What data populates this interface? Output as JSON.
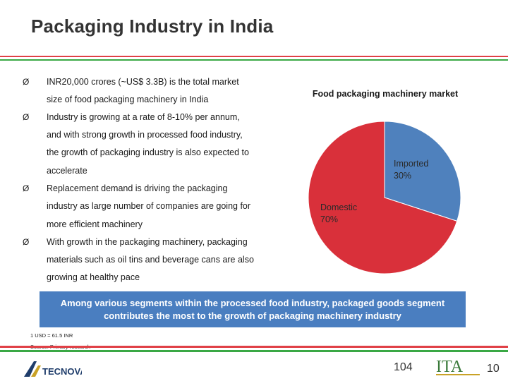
{
  "slide": {
    "title": "Packaging Industry in India",
    "bullet_symbol": "Ø",
    "bullets": [
      {
        "lines": [
          "INR20,000 crores (~US$ 3.3B) is the total market",
          "size of food packaging machinery in India"
        ]
      },
      {
        "lines": [
          "Industry is growing at a rate of 8-10% per annum,",
          "and with strong growth in processed food industry,",
          "the growth of packaging industry is also expected to",
          "accelerate"
        ]
      },
      {
        "lines": [
          "Replacement demand is driving the packaging",
          "industry as large number of companies are going for",
          "more efficient machinery"
        ]
      },
      {
        "lines": [
          "With growth in the packaging machinery, packaging",
          "materials such as oil tins and beverage cans are also",
          "growing at healthy pace"
        ]
      }
    ],
    "banner": "Among various segments within the processed food industry, packaged goods segment contributes the most to the growth of packaging machinery industry",
    "footnote_1": "1 USD = 61.5 INR",
    "footnote_2": "Source: Primary research",
    "page_number_center": "104",
    "page_number_right": "10",
    "logo_left_text": "TECNOVA",
    "logo_right_text": "ITA",
    "colors": {
      "red": "#d9303a",
      "blue": "#4f81bd",
      "banner": "#4a7ec0",
      "green": "#3aa845"
    }
  },
  "chart_data": {
    "type": "pie",
    "title": "Food packaging machinery market",
    "categories": [
      "Imported",
      "Domestic"
    ],
    "values": [
      30,
      70
    ],
    "labels": [
      "Imported\n30%",
      "Domestic\n70%"
    ],
    "colors": [
      "#4f81bd",
      "#d9303a"
    ]
  }
}
